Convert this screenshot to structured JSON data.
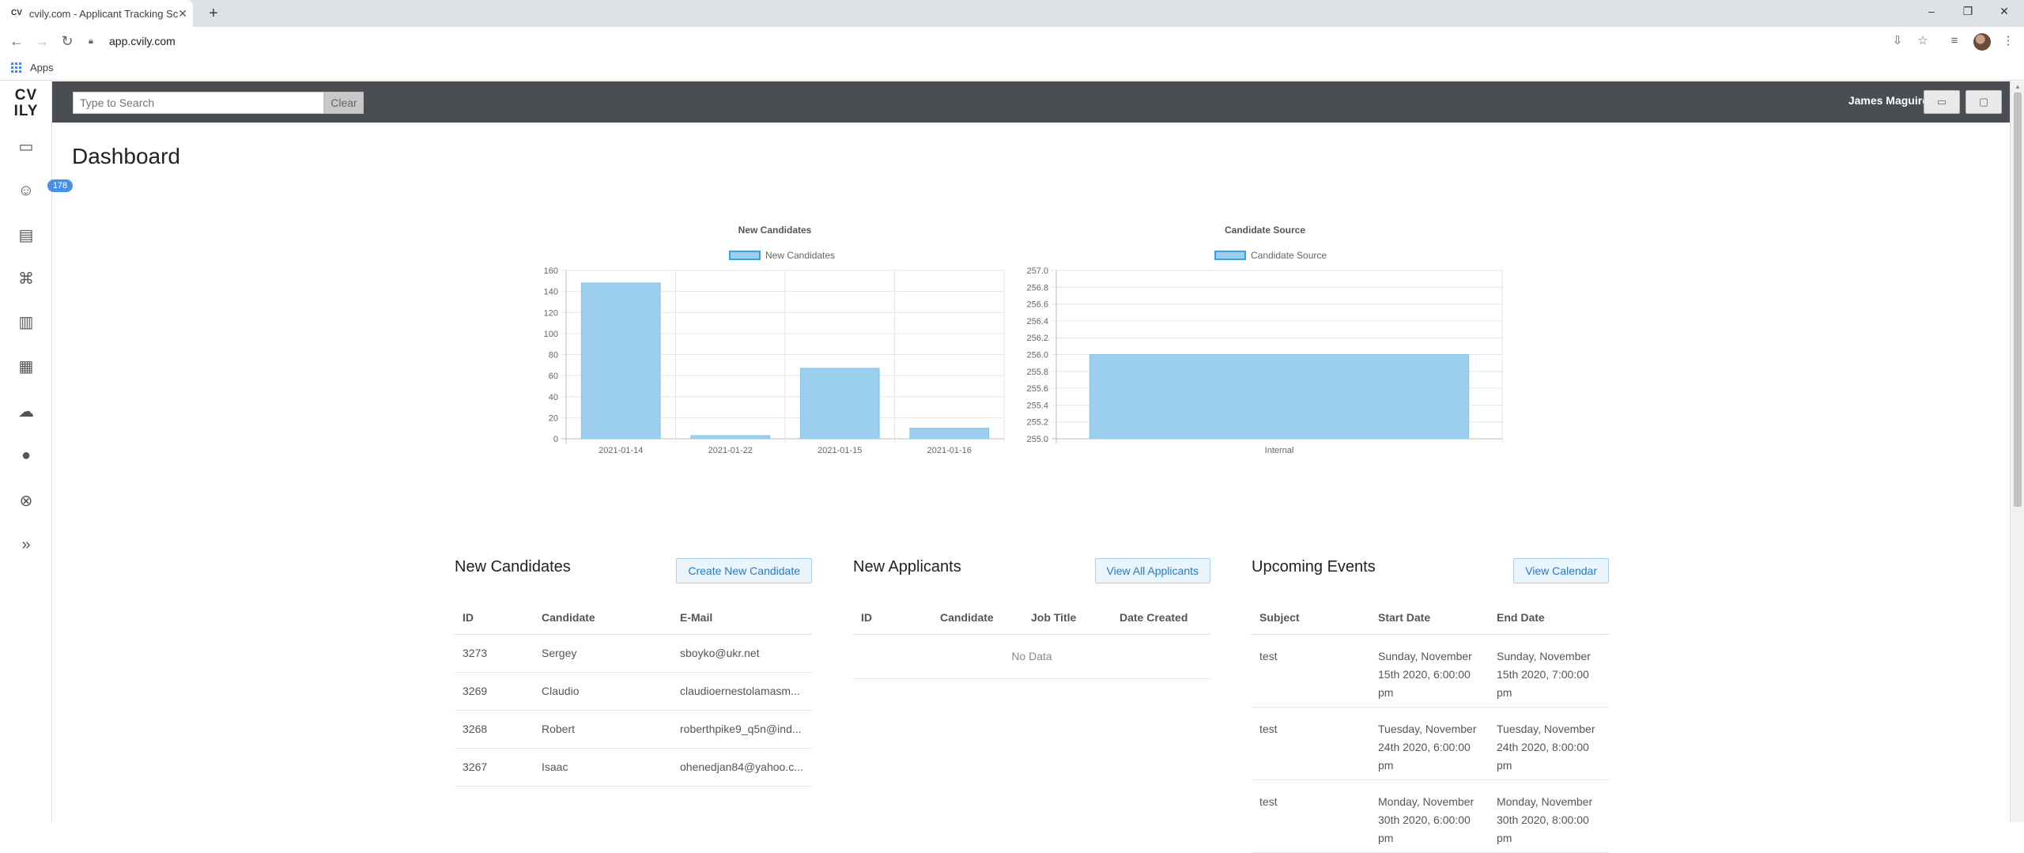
{
  "browser": {
    "tab_title": "cvily.com - Applicant Tracking Sc",
    "favicon_text": "CV",
    "url": "app.cvily.com",
    "bookmark_apps": "Apps"
  },
  "app": {
    "logo_line1": "CV",
    "logo_line2": "ILY",
    "badge_count": "178",
    "search_placeholder": "Type to Search",
    "clear_label": "Clear",
    "user_name": "James Maguire",
    "page_title": "Dashboard"
  },
  "chart_data": [
    {
      "type": "bar",
      "title": "New Candidates",
      "legend": "New Candidates",
      "categories": [
        "2021-01-14",
        "2021-01-22",
        "2021-01-15",
        "2021-01-16"
      ],
      "values": [
        148,
        3,
        67,
        10
      ],
      "ylim": [
        0,
        160
      ],
      "yticks": [
        0,
        20,
        40,
        60,
        80,
        100,
        120,
        140,
        160
      ],
      "grid": true,
      "legend_position": "top"
    },
    {
      "type": "bar",
      "title": "Candidate Source",
      "legend": "Candidate Source",
      "categories": [
        "Internal"
      ],
      "values": [
        256
      ],
      "ylim": [
        255.0,
        257.0
      ],
      "yticks": [
        "255.0",
        "255.2",
        "255.4",
        "255.6",
        "255.8",
        "256.0",
        "256.2",
        "256.4",
        "256.6",
        "256.8",
        "257.0"
      ],
      "grid": true,
      "legend_position": "top"
    }
  ],
  "new_candidates": {
    "title": "New Candidates",
    "button": "Create New Candidate",
    "headers": [
      "ID",
      "Candidate",
      "E-Mail"
    ],
    "rows": [
      [
        "3273",
        "Sergey",
        "sboyko@ukr.net"
      ],
      [
        "3269",
        "Claudio",
        "claudioernestolamasm..."
      ],
      [
        "3268",
        "Robert",
        "roberthpike9_q5n@ind..."
      ],
      [
        "3267",
        "Isaac",
        "ohenedjan84@yahoo.c..."
      ]
    ]
  },
  "new_applicants": {
    "title": "New Applicants",
    "button": "View All Applicants",
    "headers": [
      "ID",
      "Candidate",
      "Job Title",
      "Date Created"
    ],
    "empty": "No Data"
  },
  "upcoming_events": {
    "title": "Upcoming Events",
    "button": "View Calendar",
    "headers": [
      "Subject",
      "Start Date",
      "End Date"
    ],
    "rows": [
      [
        "test",
        "Sunday, November 15th 2020, 6:00:00 pm",
        "Sunday, November 15th 2020, 7:00:00 pm"
      ],
      [
        "test",
        "Tuesday, November 24th 2020, 6:00:00 pm",
        "Tuesday, November 24th 2020, 8:00:00 pm"
      ],
      [
        "test",
        "Monday, November 30th 2020, 6:00:00 pm",
        "Monday, November 30th 2020, 8:00:00 pm"
      ]
    ]
  }
}
